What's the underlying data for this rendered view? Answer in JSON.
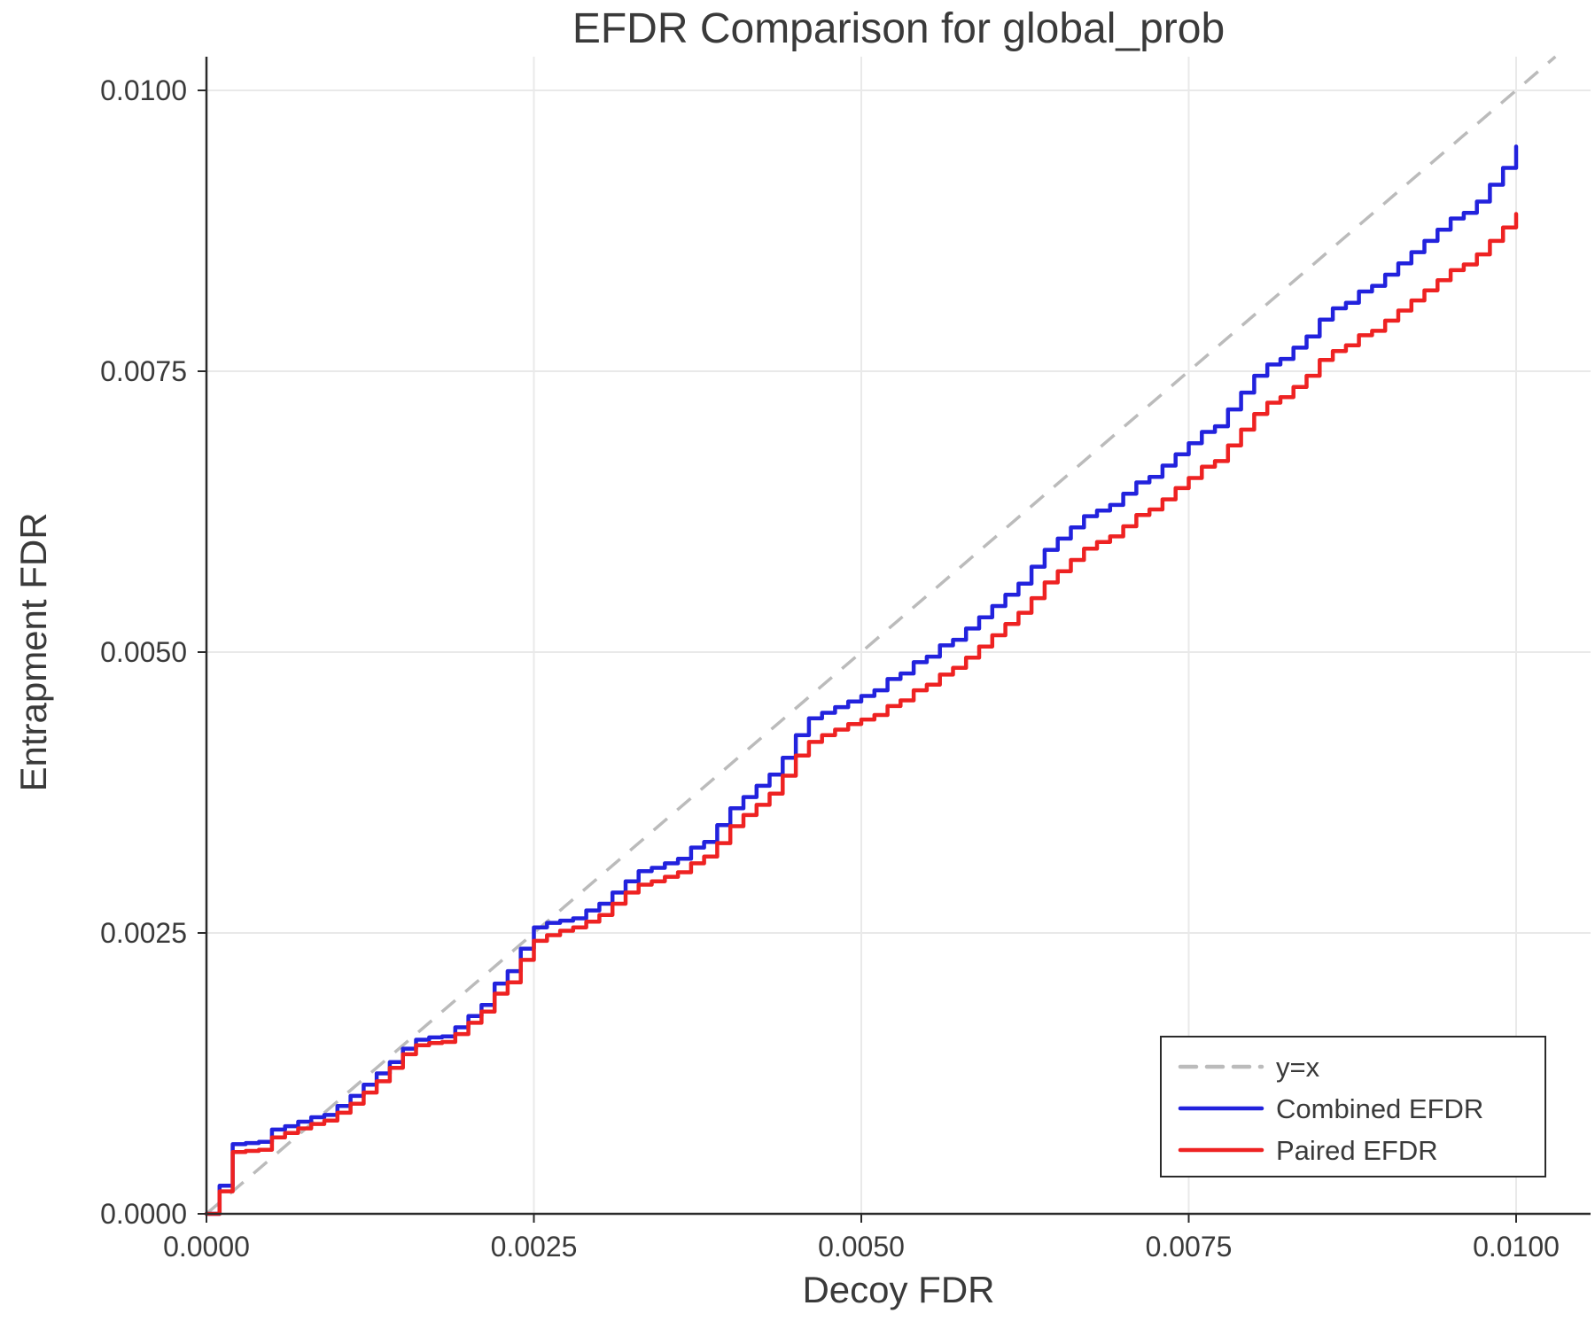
{
  "page": {
    "title": "EFDR Comparison for global_prob"
  },
  "legend": {
    "items": [
      {
        "label": "y=x"
      },
      {
        "label": "Combined EFDR"
      },
      {
        "label": "Paired EFDR"
      }
    ]
  },
  "chart_data": {
    "type": "line",
    "title": "EFDR Comparison for global_prob",
    "xlabel": "Decoy FDR",
    "ylabel": "Entrapment FDR",
    "xlim": [
      0.0,
      0.0105
    ],
    "ylim": [
      0.0,
      0.0103
    ],
    "grid": true,
    "legend_position": "bottom-right",
    "x_ticks": {
      "values": [
        0.0,
        0.0025,
        0.005,
        0.0075,
        0.01
      ],
      "labels": [
        "0.0000",
        "0.0025",
        "0.0050",
        "0.0075",
        "0.0100"
      ]
    },
    "y_ticks": {
      "values": [
        0.0,
        0.0025,
        0.005,
        0.0075,
        0.01
      ],
      "labels": [
        "0.0000",
        "0.0025",
        "0.0050",
        "0.0075",
        "0.0100"
      ]
    },
    "reference_line": {
      "label": "y=x",
      "style": "dashed",
      "color": "#bbbbbb"
    },
    "x": [
      0.0,
      0.0001,
      0.0002,
      0.0003,
      0.0004,
      0.0005,
      0.0006,
      0.0007,
      0.0008,
      0.0009,
      0.001,
      0.0011,
      0.0012,
      0.0013,
      0.0014,
      0.0015,
      0.0016,
      0.0017,
      0.0018,
      0.0019,
      0.002,
      0.0021,
      0.0022,
      0.0023,
      0.0024,
      0.0025,
      0.0026,
      0.0027,
      0.0028,
      0.0029,
      0.003,
      0.0031,
      0.0032,
      0.0033,
      0.0034,
      0.0035,
      0.0036,
      0.0037,
      0.0038,
      0.0039,
      0.004,
      0.0041,
      0.0042,
      0.0043,
      0.0044,
      0.0045,
      0.0046,
      0.0047,
      0.0048,
      0.0049,
      0.005,
      0.0051,
      0.0052,
      0.0053,
      0.0054,
      0.0055,
      0.0056,
      0.0057,
      0.0058,
      0.0059,
      0.006,
      0.0061,
      0.0062,
      0.0063,
      0.0064,
      0.0065,
      0.0066,
      0.0067,
      0.0068,
      0.0069,
      0.007,
      0.0071,
      0.0072,
      0.0073,
      0.0074,
      0.0075,
      0.0076,
      0.0077,
      0.0078,
      0.0079,
      0.008,
      0.0081,
      0.0082,
      0.0083,
      0.0084,
      0.0085,
      0.0086,
      0.0087,
      0.0088,
      0.0089,
      0.009,
      0.0091,
      0.0092,
      0.0093,
      0.0094,
      0.0095,
      0.0096,
      0.0097,
      0.0098,
      0.0099,
      0.01
    ],
    "series": [
      {
        "name": "Combined EFDR",
        "color": "#2222dd",
        "values": [
          0.0,
          0.00025,
          0.00062,
          0.00063,
          0.00064,
          0.00075,
          0.00078,
          0.00082,
          0.00086,
          0.00088,
          0.00096,
          0.00105,
          0.00115,
          0.00125,
          0.00135,
          0.00147,
          0.00155,
          0.00157,
          0.00158,
          0.00166,
          0.00176,
          0.00186,
          0.00205,
          0.00216,
          0.00236,
          0.00255,
          0.00259,
          0.00261,
          0.00263,
          0.0027,
          0.00276,
          0.00286,
          0.00296,
          0.00305,
          0.00308,
          0.00312,
          0.00316,
          0.00326,
          0.00331,
          0.00346,
          0.00361,
          0.00371,
          0.00381,
          0.00391,
          0.00406,
          0.00426,
          0.00441,
          0.00446,
          0.00451,
          0.00456,
          0.00461,
          0.00466,
          0.00476,
          0.00481,
          0.00491,
          0.00496,
          0.00506,
          0.00511,
          0.00521,
          0.00531,
          0.00541,
          0.00551,
          0.00561,
          0.00576,
          0.00591,
          0.00601,
          0.00611,
          0.00621,
          0.00626,
          0.00631,
          0.00641,
          0.00651,
          0.00656,
          0.00666,
          0.00676,
          0.00686,
          0.00696,
          0.00701,
          0.00716,
          0.00731,
          0.00746,
          0.00756,
          0.00761,
          0.00771,
          0.00781,
          0.00796,
          0.00806,
          0.00811,
          0.00821,
          0.00826,
          0.00836,
          0.00846,
          0.00856,
          0.00866,
          0.00876,
          0.00886,
          0.00891,
          0.00901,
          0.00916,
          0.00931,
          0.0095
        ]
      },
      {
        "name": "Paired EFDR",
        "color": "#ee2222",
        "values": [
          0.0,
          0.0002,
          0.00055,
          0.00056,
          0.00057,
          0.00068,
          0.00072,
          0.00076,
          0.0008,
          0.00083,
          0.0009,
          0.00098,
          0.00108,
          0.00118,
          0.0013,
          0.00142,
          0.0015,
          0.00152,
          0.00153,
          0.0016,
          0.0017,
          0.0018,
          0.00196,
          0.00206,
          0.00226,
          0.00243,
          0.00248,
          0.00252,
          0.00255,
          0.0026,
          0.00266,
          0.00276,
          0.00286,
          0.00293,
          0.00296,
          0.003,
          0.00304,
          0.00312,
          0.00318,
          0.0033,
          0.00345,
          0.00355,
          0.00364,
          0.00374,
          0.0039,
          0.00408,
          0.0042,
          0.00426,
          0.00431,
          0.00436,
          0.0044,
          0.00444,
          0.00452,
          0.00457,
          0.00466,
          0.00471,
          0.0048,
          0.00486,
          0.00495,
          0.00505,
          0.00515,
          0.00525,
          0.00535,
          0.00548,
          0.00562,
          0.00572,
          0.00582,
          0.00592,
          0.00598,
          0.00603,
          0.00612,
          0.00622,
          0.00627,
          0.00636,
          0.00646,
          0.00655,
          0.00665,
          0.0067,
          0.00684,
          0.00698,
          0.00712,
          0.00722,
          0.00727,
          0.00736,
          0.00746,
          0.0076,
          0.00768,
          0.00773,
          0.00782,
          0.00786,
          0.00795,
          0.00804,
          0.00813,
          0.00822,
          0.00831,
          0.0084,
          0.00845,
          0.00854,
          0.00866,
          0.00878,
          0.0089
        ]
      }
    ]
  }
}
